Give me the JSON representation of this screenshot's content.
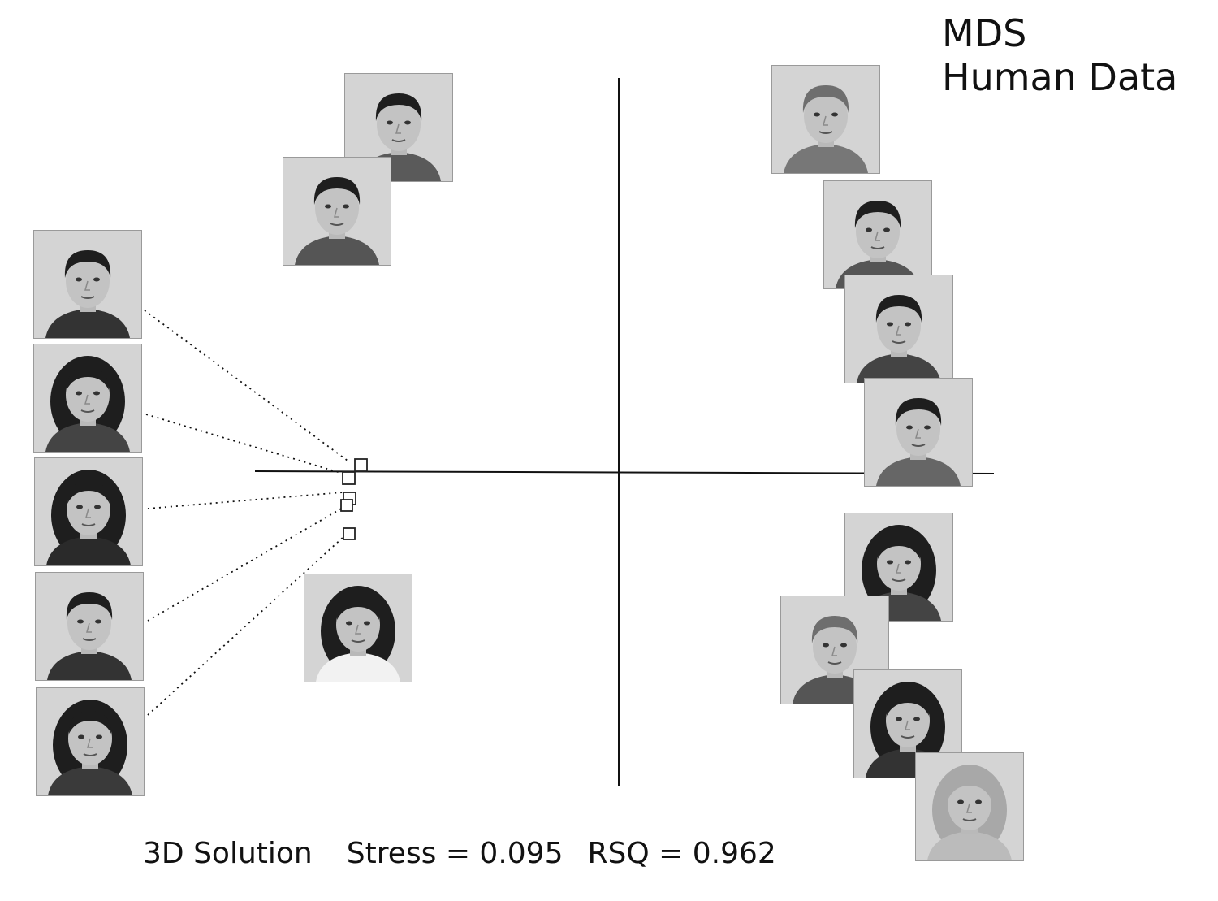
{
  "title": {
    "line1": "MDS",
    "line2": "Human Data"
  },
  "caption": {
    "solution": "3D Solution",
    "stress": "Stress = 0.095",
    "rsq": "RSQ = 0.962"
  },
  "colors": {
    "ink": "#111111",
    "photo_bg": "#d6d6d6",
    "marker": "#222222"
  }
}
